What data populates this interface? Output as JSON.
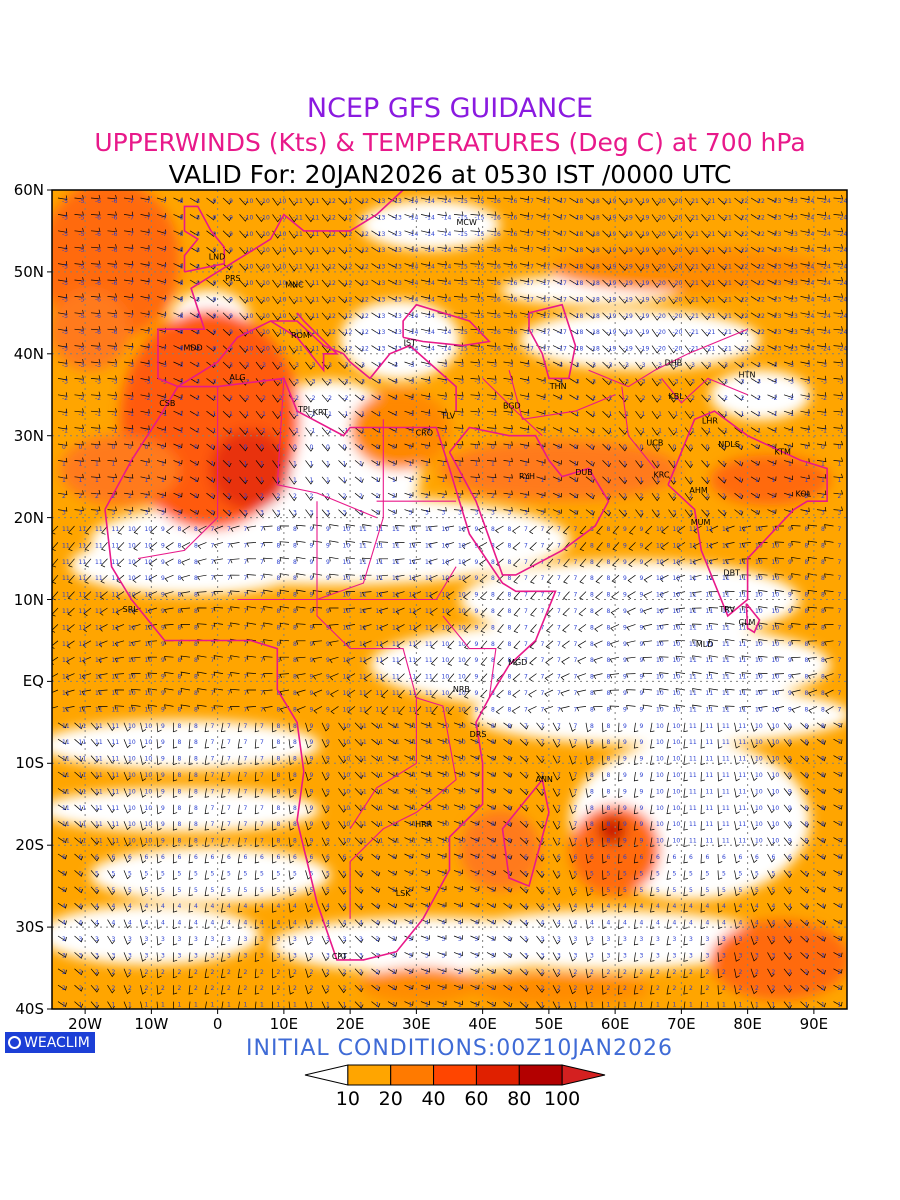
{
  "titles": {
    "line1": "NCEP GFS GUIDANCE",
    "line2": "UPPERWINDS (Kts) & TEMPERATURES (Deg C) at 700 hPa",
    "line3": "VALID For: 20JAN2026 at 0530 IST /0000 UTC"
  },
  "colors": {
    "line1": "#8a1ae0",
    "line2": "#e8198a",
    "line3": "#000000",
    "border": "#e8198a",
    "temp_numbers": "#2a3fd0",
    "initial": "#3f6bd6"
  },
  "axes": {
    "lat_labels": [
      "60N",
      "50N",
      "40N",
      "30N",
      "20N",
      "10N",
      "EQ",
      "10S",
      "20S",
      "30S",
      "40S"
    ],
    "lon_labels": [
      "20W",
      "10W",
      "0",
      "10E",
      "20E",
      "30E",
      "40E",
      "50E",
      "60E",
      "70E",
      "80E",
      "90E"
    ]
  },
  "cities": [
    {
      "code": "MCW",
      "lat": 55.7,
      "lon": 37.6
    },
    {
      "code": "LND",
      "lat": 51.5,
      "lon": -0.1
    },
    {
      "code": "PRS",
      "lat": 48.9,
      "lon": 2.3
    },
    {
      "code": "MNC",
      "lat": 48.1,
      "lon": 11.6
    },
    {
      "code": "MDD",
      "lat": 40.4,
      "lon": -3.7
    },
    {
      "code": "ROM",
      "lat": 41.9,
      "lon": 12.5
    },
    {
      "code": "IST",
      "lat": 41.0,
      "lon": 29.0
    },
    {
      "code": "ALG",
      "lat": 36.8,
      "lon": 3.0
    },
    {
      "code": "CSB",
      "lat": 33.6,
      "lon": -7.6
    },
    {
      "code": "TPL",
      "lat": 32.9,
      "lon": 13.2
    },
    {
      "code": "KRT",
      "lat": 32.5,
      "lon": 15.5
    },
    {
      "code": "TLV",
      "lat": 32.1,
      "lon": 34.8
    },
    {
      "code": "BGD",
      "lat": 33.3,
      "lon": 44.4
    },
    {
      "code": "THN",
      "lat": 35.7,
      "lon": 51.4
    },
    {
      "code": "DHB",
      "lat": 38.6,
      "lon": 68.8
    },
    {
      "code": "HTN",
      "lat": 37.1,
      "lon": 79.9
    },
    {
      "code": "KBL",
      "lat": 34.5,
      "lon": 69.2
    },
    {
      "code": "LHR",
      "lat": 31.5,
      "lon": 74.3
    },
    {
      "code": "NDLS",
      "lat": 28.6,
      "lon": 77.2
    },
    {
      "code": "KTM",
      "lat": 27.7,
      "lon": 85.3
    },
    {
      "code": "UCB",
      "lat": 28.8,
      "lon": 66.0
    },
    {
      "code": "CRO",
      "lat": 30.0,
      "lon": 31.2
    },
    {
      "code": "RYH",
      "lat": 24.7,
      "lon": 46.7
    },
    {
      "code": "DUB",
      "lat": 25.2,
      "lon": 55.3
    },
    {
      "code": "KRC",
      "lat": 24.9,
      "lon": 67.0
    },
    {
      "code": "AHM",
      "lat": 23.0,
      "lon": 72.6
    },
    {
      "code": "KOL",
      "lat": 22.6,
      "lon": 88.4
    },
    {
      "code": "MUM",
      "lat": 19.1,
      "lon": 72.9
    },
    {
      "code": "DBT",
      "lat": 12.9,
      "lon": 77.6
    },
    {
      "code": "TRV",
      "lat": 8.5,
      "lon": 76.9
    },
    {
      "code": "CLM",
      "lat": 6.9,
      "lon": 79.9
    },
    {
      "code": "SRL",
      "lat": 8.5,
      "lon": -13.2
    },
    {
      "code": "MGD",
      "lat": 2.0,
      "lon": 45.3
    },
    {
      "code": "MLD",
      "lat": 4.2,
      "lon": 73.5
    },
    {
      "code": "NRB",
      "lat": -1.3,
      "lon": 36.8
    },
    {
      "code": "DRS",
      "lat": -6.8,
      "lon": 39.3
    },
    {
      "code": "ANN",
      "lat": -12.3,
      "lon": 49.3
    },
    {
      "code": "HRR",
      "lat": -17.8,
      "lon": 31.1
    },
    {
      "code": "LSK",
      "lat": -26.2,
      "lon": 28.0
    },
    {
      "code": "CPT",
      "lat": -33.9,
      "lon": 18.4
    }
  ],
  "initial_conditions": "INITIAL CONDITIONS:00Z10JAN2026",
  "logo": "WEACLIM",
  "colorbar": {
    "labels": [
      "10",
      "20",
      "40",
      "60",
      "80",
      "100"
    ],
    "colors": [
      "#ffffff",
      "#ffa500",
      "#ff7a00",
      "#ff4500",
      "#e02000",
      "#b30000",
      "#d42020"
    ]
  }
}
